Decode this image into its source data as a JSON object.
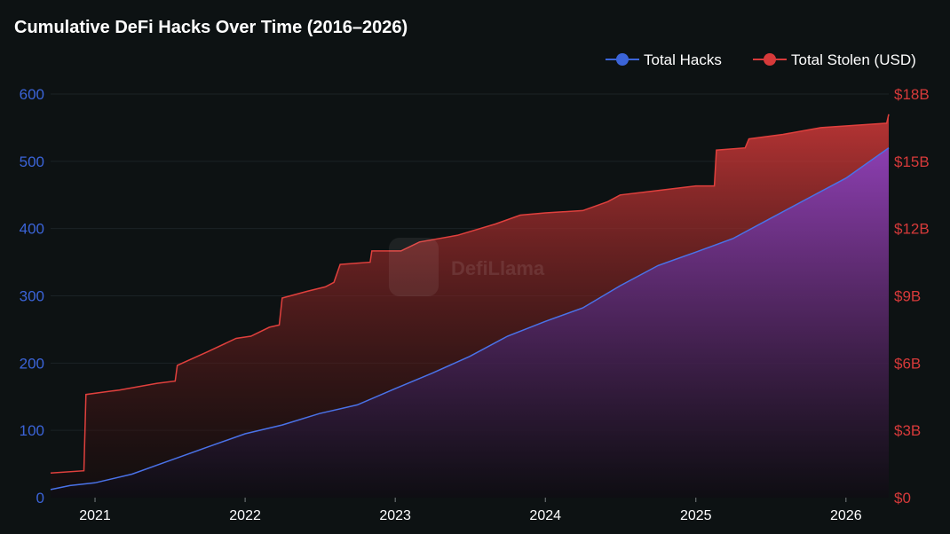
{
  "colors": {
    "background": "#0d1213",
    "hacks": "#3b64d8",
    "stolen": "#d63a3a"
  },
  "watermark": "DefiLlama",
  "chart_data": {
    "type": "area",
    "title": "Cumulative DeFi Hacks Over Time (2016–2026)",
    "legend_position": "top-right",
    "grid": true,
    "x_ticks": [
      "2021",
      "2022",
      "2023",
      "2024",
      "2025",
      "2026"
    ],
    "xlim": [
      "2020-09-15",
      "2026-04-15"
    ],
    "y_left": {
      "ticks": [
        "0",
        "100",
        "200",
        "300",
        "400",
        "500",
        "600"
      ],
      "ylim": [
        0,
        600
      ]
    },
    "y_right": {
      "ticks": [
        "$0",
        "$3B",
        "$6B",
        "$9B",
        "$12B",
        "$15B",
        "$18B"
      ],
      "ylim": [
        0,
        18000000000
      ]
    },
    "series": [
      {
        "name": "Total Hacks",
        "axis": "left",
        "x": [
          "2020-09-15",
          "2020-11-01",
          "2021-01-01",
          "2021-04-01",
          "2021-07-01",
          "2021-10-01",
          "2022-01-01",
          "2022-04-01",
          "2022-07-01",
          "2022-10-01",
          "2023-01-01",
          "2023-04-01",
          "2023-07-01",
          "2023-10-01",
          "2024-01-01",
          "2024-04-01",
          "2024-07-01",
          "2024-10-01",
          "2025-01-01",
          "2025-04-01",
          "2025-07-01",
          "2025-10-01",
          "2026-01-01",
          "2026-04-15"
        ],
        "values": [
          12,
          18,
          22,
          35,
          55,
          75,
          95,
          108,
          125,
          138,
          162,
          185,
          210,
          240,
          262,
          282,
          315,
          345,
          365,
          385,
          415,
          445,
          475,
          520
        ]
      },
      {
        "name": "Total Stolen (USD)",
        "axis": "right",
        "x": [
          "2020-09-15",
          "2020-12-05",
          "2020-12-10",
          "2021-03-01",
          "2021-06-01",
          "2021-07-15",
          "2021-07-20",
          "2021-10-01",
          "2021-12-10",
          "2022-01-15",
          "2022-03-01",
          "2022-03-25",
          "2022-04-01",
          "2022-06-01",
          "2022-07-15",
          "2022-08-05",
          "2022-08-20",
          "2022-11-01",
          "2022-11-05",
          "2023-01-15",
          "2023-03-01",
          "2023-06-01",
          "2023-09-01",
          "2023-11-01",
          "2024-01-01",
          "2024-04-01",
          "2024-06-01",
          "2024-07-01",
          "2024-10-01",
          "2025-01-01",
          "2025-02-15",
          "2025-02-20",
          "2025-05-01",
          "2025-05-10",
          "2025-08-01",
          "2025-11-01",
          "2026-04-10",
          "2026-04-15"
        ],
        "values": [
          1100000000,
          1200000000,
          4600000000,
          4800000000,
          5100000000,
          5200000000,
          5900000000,
          6500000000,
          7100000000,
          7200000000,
          7600000000,
          7700000000,
          8900000000,
          9200000000,
          9400000000,
          9600000000,
          10400000000,
          10500000000,
          11000000000,
          11000000000,
          11400000000,
          11700000000,
          12200000000,
          12600000000,
          12700000000,
          12800000000,
          13200000000,
          13500000000,
          13700000000,
          13900000000,
          13900000000,
          15500000000,
          15600000000,
          16000000000,
          16200000000,
          16500000000,
          16700000000,
          17100000000
        ]
      }
    ]
  }
}
